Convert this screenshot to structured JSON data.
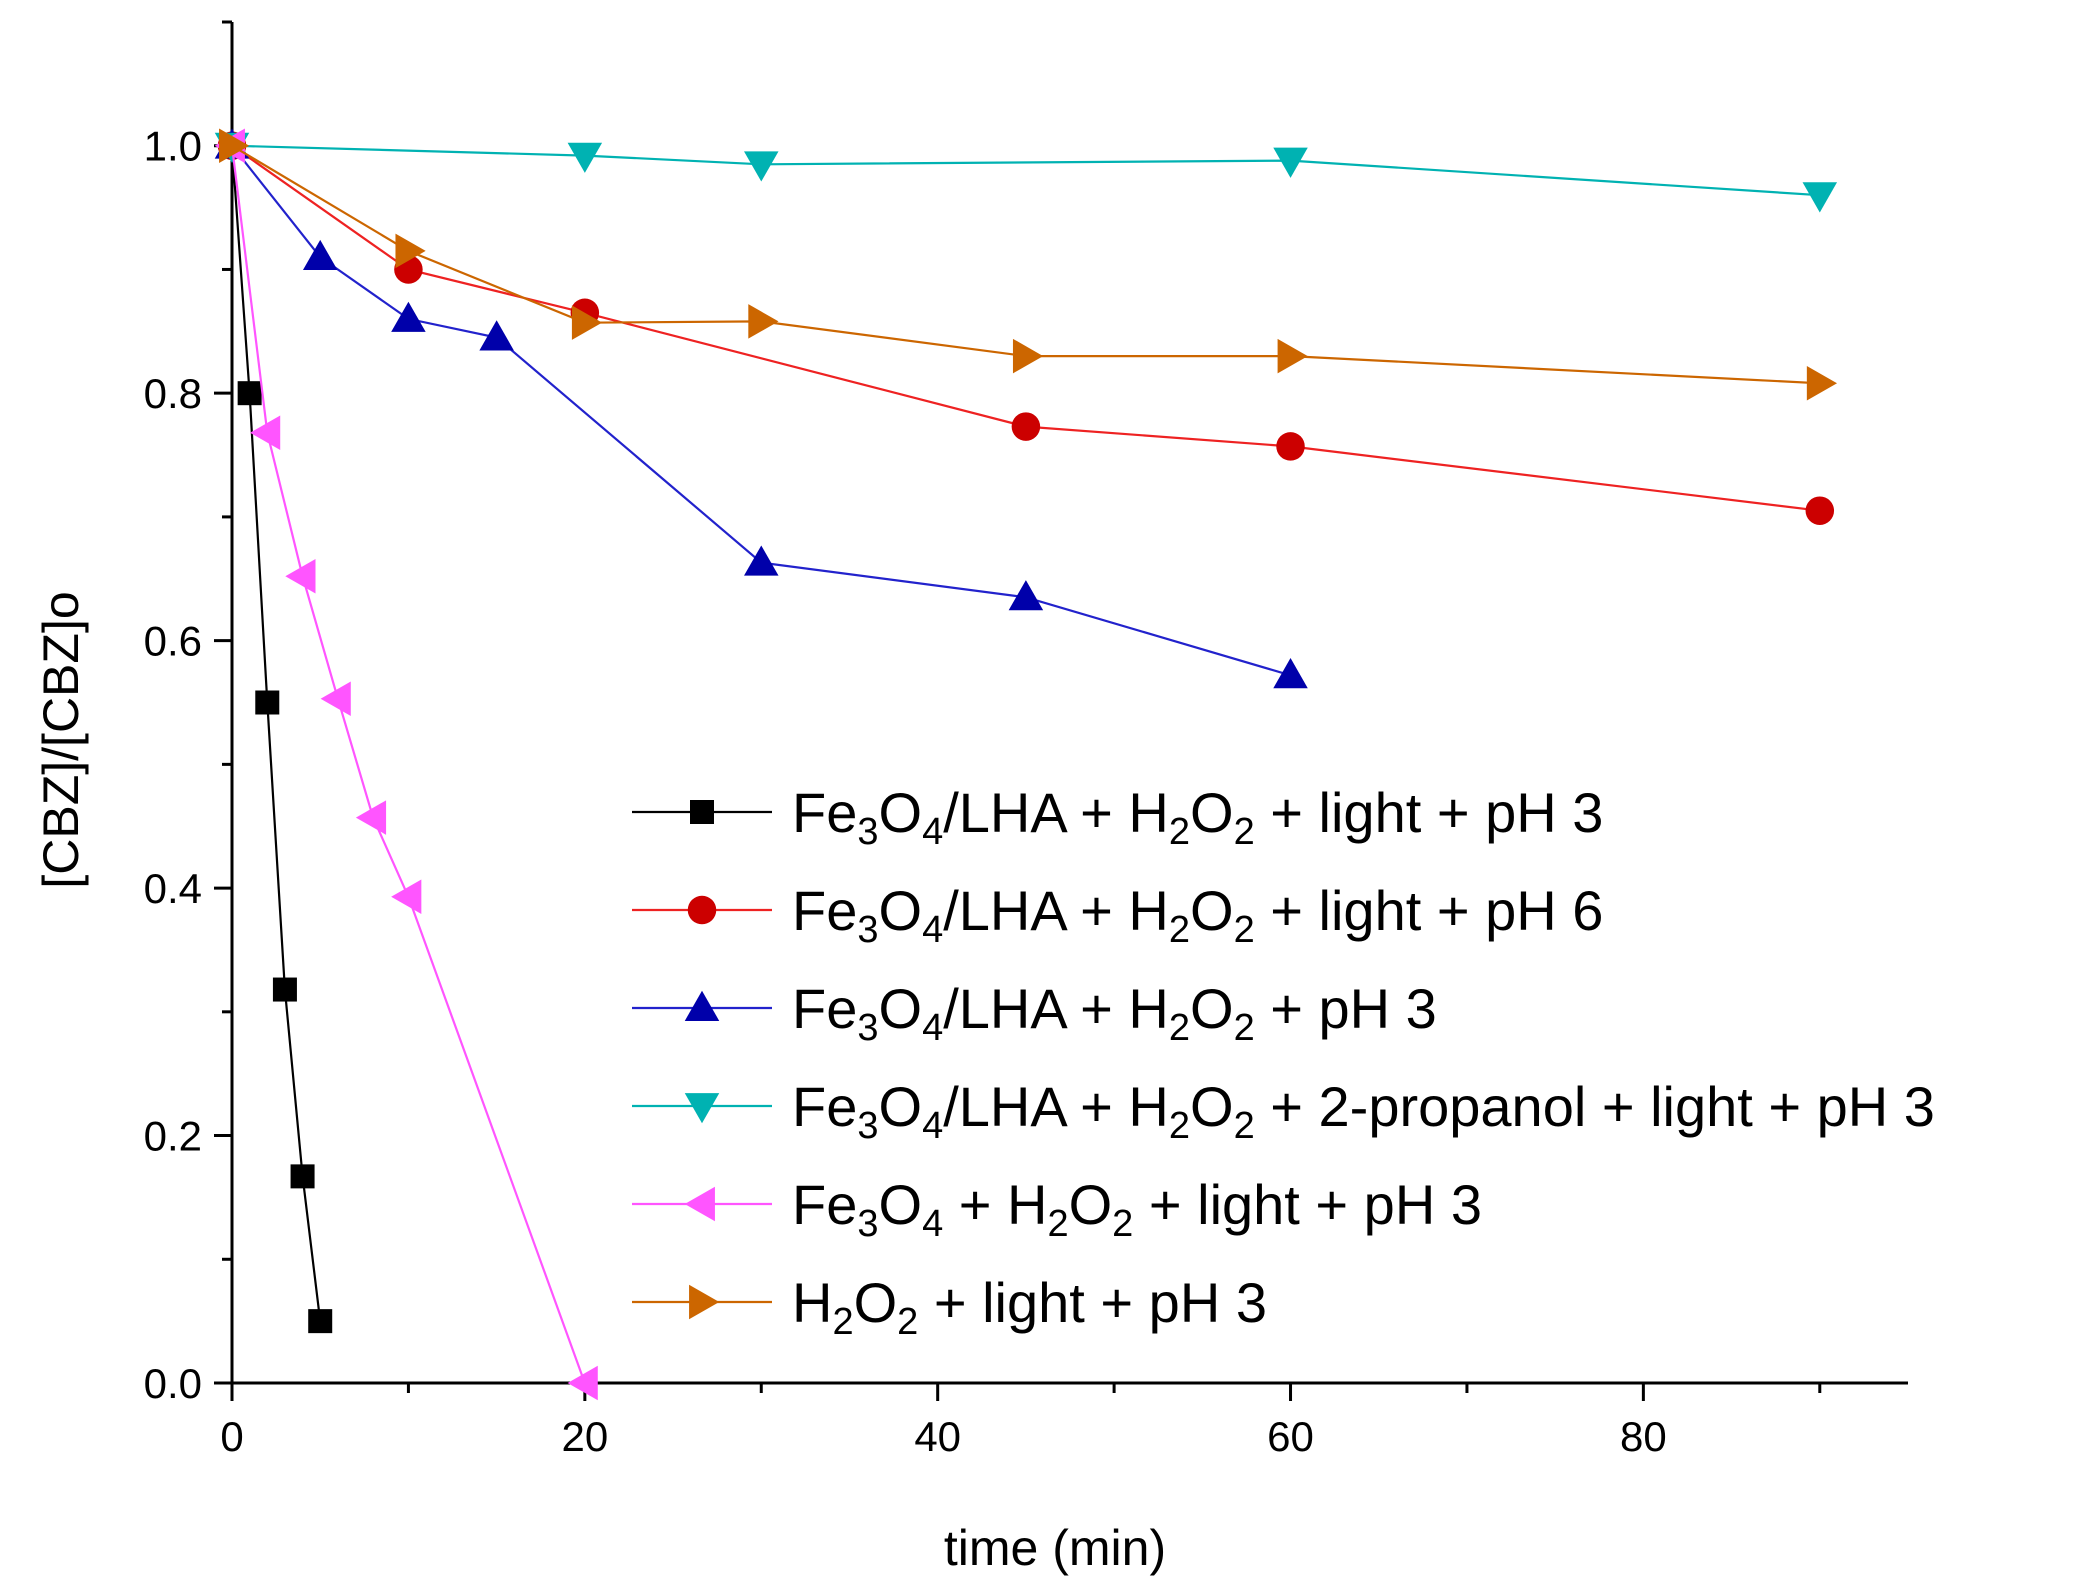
{
  "chart_data": {
    "type": "line",
    "title": "",
    "xlabel": "time (min)",
    "ylabel": "[CBZ]/[CBZ]o",
    "xlim": [
      0,
      95
    ],
    "ylim": [
      0,
      1.1
    ],
    "x_ticks": [
      0,
      20,
      40,
      60,
      80
    ],
    "y_ticks": [
      0.0,
      0.2,
      0.4,
      0.6,
      0.8,
      1.0
    ],
    "x_tick_labels": [
      "0",
      "20",
      "40",
      "60",
      "80"
    ],
    "y_tick_labels": [
      "0.0",
      "0.2",
      "0.4",
      "0.6",
      "0.8",
      "1.0"
    ],
    "grid": false,
    "legend_position": "center-right",
    "series": [
      {
        "name": "Fe3O4/LHA + H2O2 + light + pH 3",
        "legend_parts": [
          [
            "Fe",
            ""
          ],
          [
            "3",
            "sub"
          ],
          [
            "O",
            ""
          ],
          [
            "4",
            "sub"
          ],
          [
            "/LHA + H",
            ""
          ],
          [
            "2",
            "sub"
          ],
          [
            "O",
            ""
          ],
          [
            "2",
            "sub"
          ],
          [
            " + light + pH 3",
            ""
          ]
        ],
        "color": "#000000",
        "marker": "square",
        "x": [
          0,
          1,
          2,
          3,
          4,
          5
        ],
        "y": [
          1.0,
          0.8,
          0.55,
          0.318,
          0.167,
          0.05
        ]
      },
      {
        "name": "Fe3O4/LHA + H2O2 + light + pH 6",
        "legend_parts": [
          [
            "Fe",
            ""
          ],
          [
            "3",
            "sub"
          ],
          [
            "O",
            ""
          ],
          [
            "4",
            "sub"
          ],
          [
            "/LHA + H",
            ""
          ],
          [
            "2",
            "sub"
          ],
          [
            "O",
            ""
          ],
          [
            "2",
            "sub"
          ],
          [
            " + light + pH 6",
            ""
          ]
        ],
        "color": "#ee2222",
        "marker_color": "#cc0000",
        "marker": "circle",
        "x": [
          0,
          10,
          20,
          45,
          60,
          90
        ],
        "y": [
          1.0,
          0.9,
          0.865,
          0.773,
          0.757,
          0.705
        ]
      },
      {
        "name": "Fe3O4/LHA + H2O2 + pH 3",
        "legend_parts": [
          [
            "Fe",
            ""
          ],
          [
            "3",
            "sub"
          ],
          [
            "O",
            ""
          ],
          [
            "4",
            "sub"
          ],
          [
            "/LHA + H",
            ""
          ],
          [
            "2",
            "sub"
          ],
          [
            "O",
            ""
          ],
          [
            "2",
            "sub"
          ],
          [
            " + pH 3",
            ""
          ]
        ],
        "color": "#2222cc",
        "marker_color": "#0000aa",
        "marker": "triangle-up",
        "x": [
          0,
          5,
          10,
          15,
          30,
          45,
          60
        ],
        "y": [
          1.0,
          0.91,
          0.86,
          0.845,
          0.663,
          0.635,
          0.572
        ]
      },
      {
        "name": "Fe3O4/LHA + H2O2 + 2-propanol + light + pH 3",
        "legend_parts": [
          [
            "Fe",
            ""
          ],
          [
            "3",
            "sub"
          ],
          [
            "O",
            ""
          ],
          [
            "4",
            "sub"
          ],
          [
            "/LHA + H",
            ""
          ],
          [
            "2",
            "sub"
          ],
          [
            "O",
            ""
          ],
          [
            "2",
            "sub"
          ],
          [
            " + 2-propanol + light + pH 3",
            ""
          ]
        ],
        "color": "#00b2b2",
        "marker": "triangle-down",
        "x": [
          0,
          20,
          30,
          60,
          90
        ],
        "y": [
          1.0,
          0.992,
          0.985,
          0.988,
          0.96
        ]
      },
      {
        "name": "Fe3O4 + H2O2 + light + pH 3",
        "legend_parts": [
          [
            "Fe",
            ""
          ],
          [
            "3",
            "sub"
          ],
          [
            "O",
            ""
          ],
          [
            "4",
            "sub"
          ],
          [
            " + H",
            ""
          ],
          [
            "2",
            "sub"
          ],
          [
            "O",
            ""
          ],
          [
            "2",
            "sub"
          ],
          [
            " + light + pH 3",
            ""
          ]
        ],
        "color": "#ff55ff",
        "marker": "triangle-left",
        "x": [
          0,
          2,
          4,
          6,
          8,
          10,
          20
        ],
        "y": [
          1.0,
          0.768,
          0.652,
          0.553,
          0.457,
          0.393,
          0.0
        ]
      },
      {
        "name": "H2O2 + light + pH 3",
        "legend_parts": [
          [
            "H",
            ""
          ],
          [
            "2",
            "sub"
          ],
          [
            "O",
            ""
          ],
          [
            "2",
            "sub"
          ],
          [
            " + light + pH 3",
            ""
          ]
        ],
        "color": "#cc6600",
        "marker": "triangle-right",
        "x": [
          0,
          10,
          20,
          30,
          45,
          60,
          90
        ],
        "y": [
          1.0,
          0.915,
          0.857,
          0.858,
          0.83,
          0.83,
          0.808
        ]
      }
    ]
  }
}
